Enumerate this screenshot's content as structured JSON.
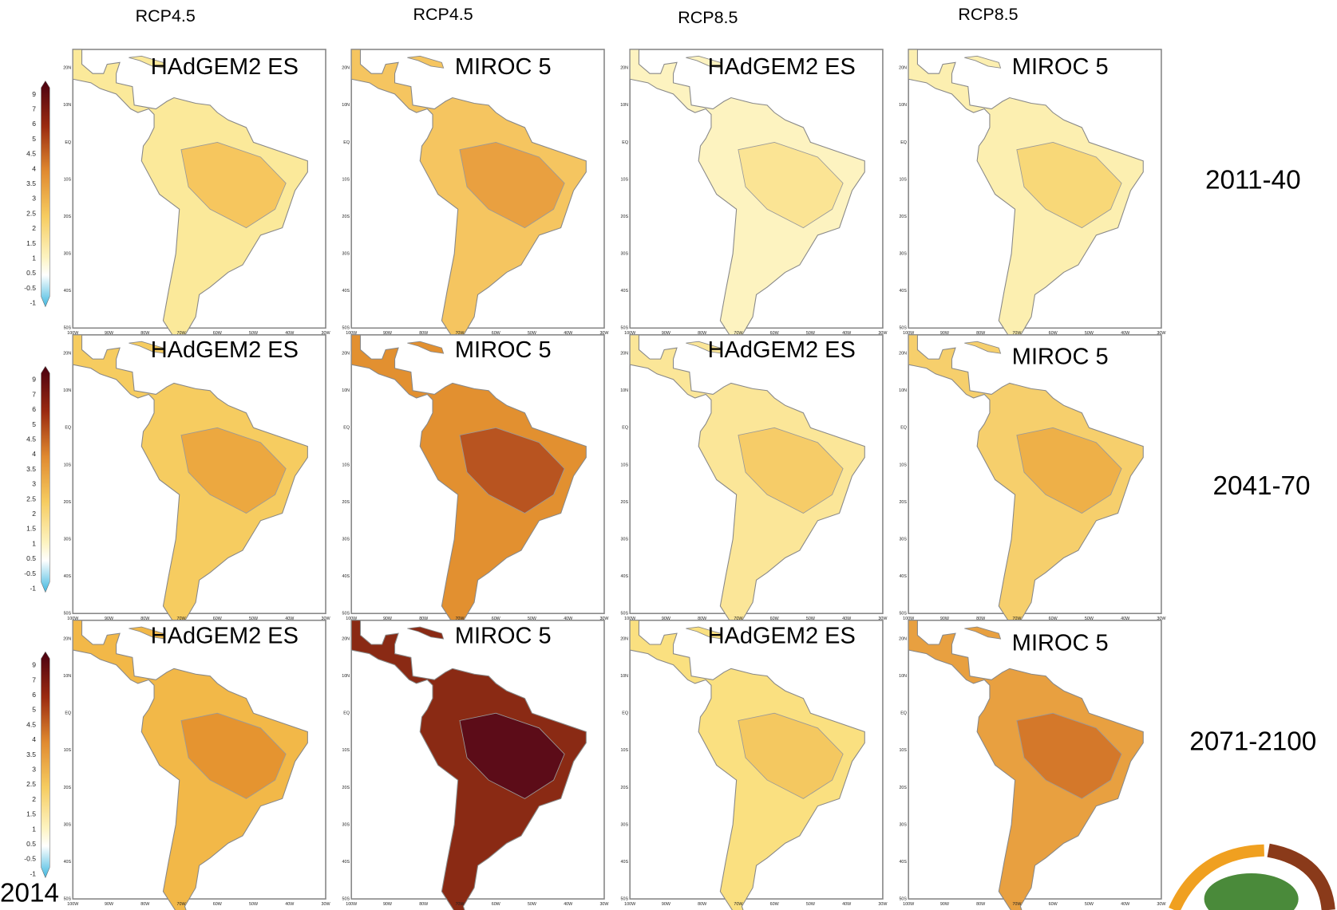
{
  "columns": [
    {
      "scenario": "RCP4.5"
    },
    {
      "scenario": "RCP4.5"
    },
    {
      "scenario": "RCP8.5"
    },
    {
      "scenario": "RCP8.5"
    }
  ],
  "rows": [
    {
      "period": "2011-40",
      "panels": [
        {
          "label": "HAdGEM2 ES",
          "color": "#fbe99a",
          "inner_color": "#f6c65e"
        },
        {
          "label": "MIROC 5",
          "color": "#f5c560",
          "inner_color": "#e9a040"
        },
        {
          "label": "HAdGEM2 ES",
          "color": "#fdf3c0",
          "inner_color": "#fbe494"
        },
        {
          "label": "MIROC 5",
          "color": "#fcefb0",
          "inner_color": "#f8d878"
        }
      ]
    },
    {
      "period": "2041-70",
      "panels": [
        {
          "label": "HAdGEM2 ES",
          "color": "#f6cc60",
          "inner_color": "#eca840"
        },
        {
          "label": "MIROC 5",
          "color": "#e29030",
          "inner_color": "#b85420"
        },
        {
          "label": "HAdGEM2 ES",
          "color": "#fbe698",
          "inner_color": "#f6cc68"
        },
        {
          "label": "MIROC 5",
          "color": "#f6cf6c",
          "inner_color": "#eeb048"
        }
      ]
    },
    {
      "period": "2071-2100",
      "panels": [
        {
          "label": "HAdGEM2 ES",
          "color": "#f2b848",
          "inner_color": "#e59430"
        },
        {
          "label": "MIROC 5",
          "color": "#8a2a14",
          "inner_color": "#5c0c18"
        },
        {
          "label": "HAdGEM2 ES",
          "color": "#fae080",
          "inner_color": "#f4c860"
        },
        {
          "label": "MIROC 5",
          "color": "#e8a040",
          "inner_color": "#d4782a"
        }
      ]
    }
  ],
  "lat_ticks": [
    "20N",
    "10N",
    "EQ",
    "10S",
    "20S",
    "30S",
    "40S",
    "50S"
  ],
  "lon_ticks": [
    "100W",
    "90W",
    "80W",
    "70W",
    "60W",
    "50W",
    "40W",
    "30W"
  ],
  "colorbar": {
    "labels": [
      "9",
      "7",
      "6",
      "5",
      "4.5",
      "4",
      "3.5",
      "3",
      "2.5",
      "2",
      "1.5",
      "1",
      "0.5",
      "-0.5",
      "-1"
    ]
  },
  "footer": "2014"
}
